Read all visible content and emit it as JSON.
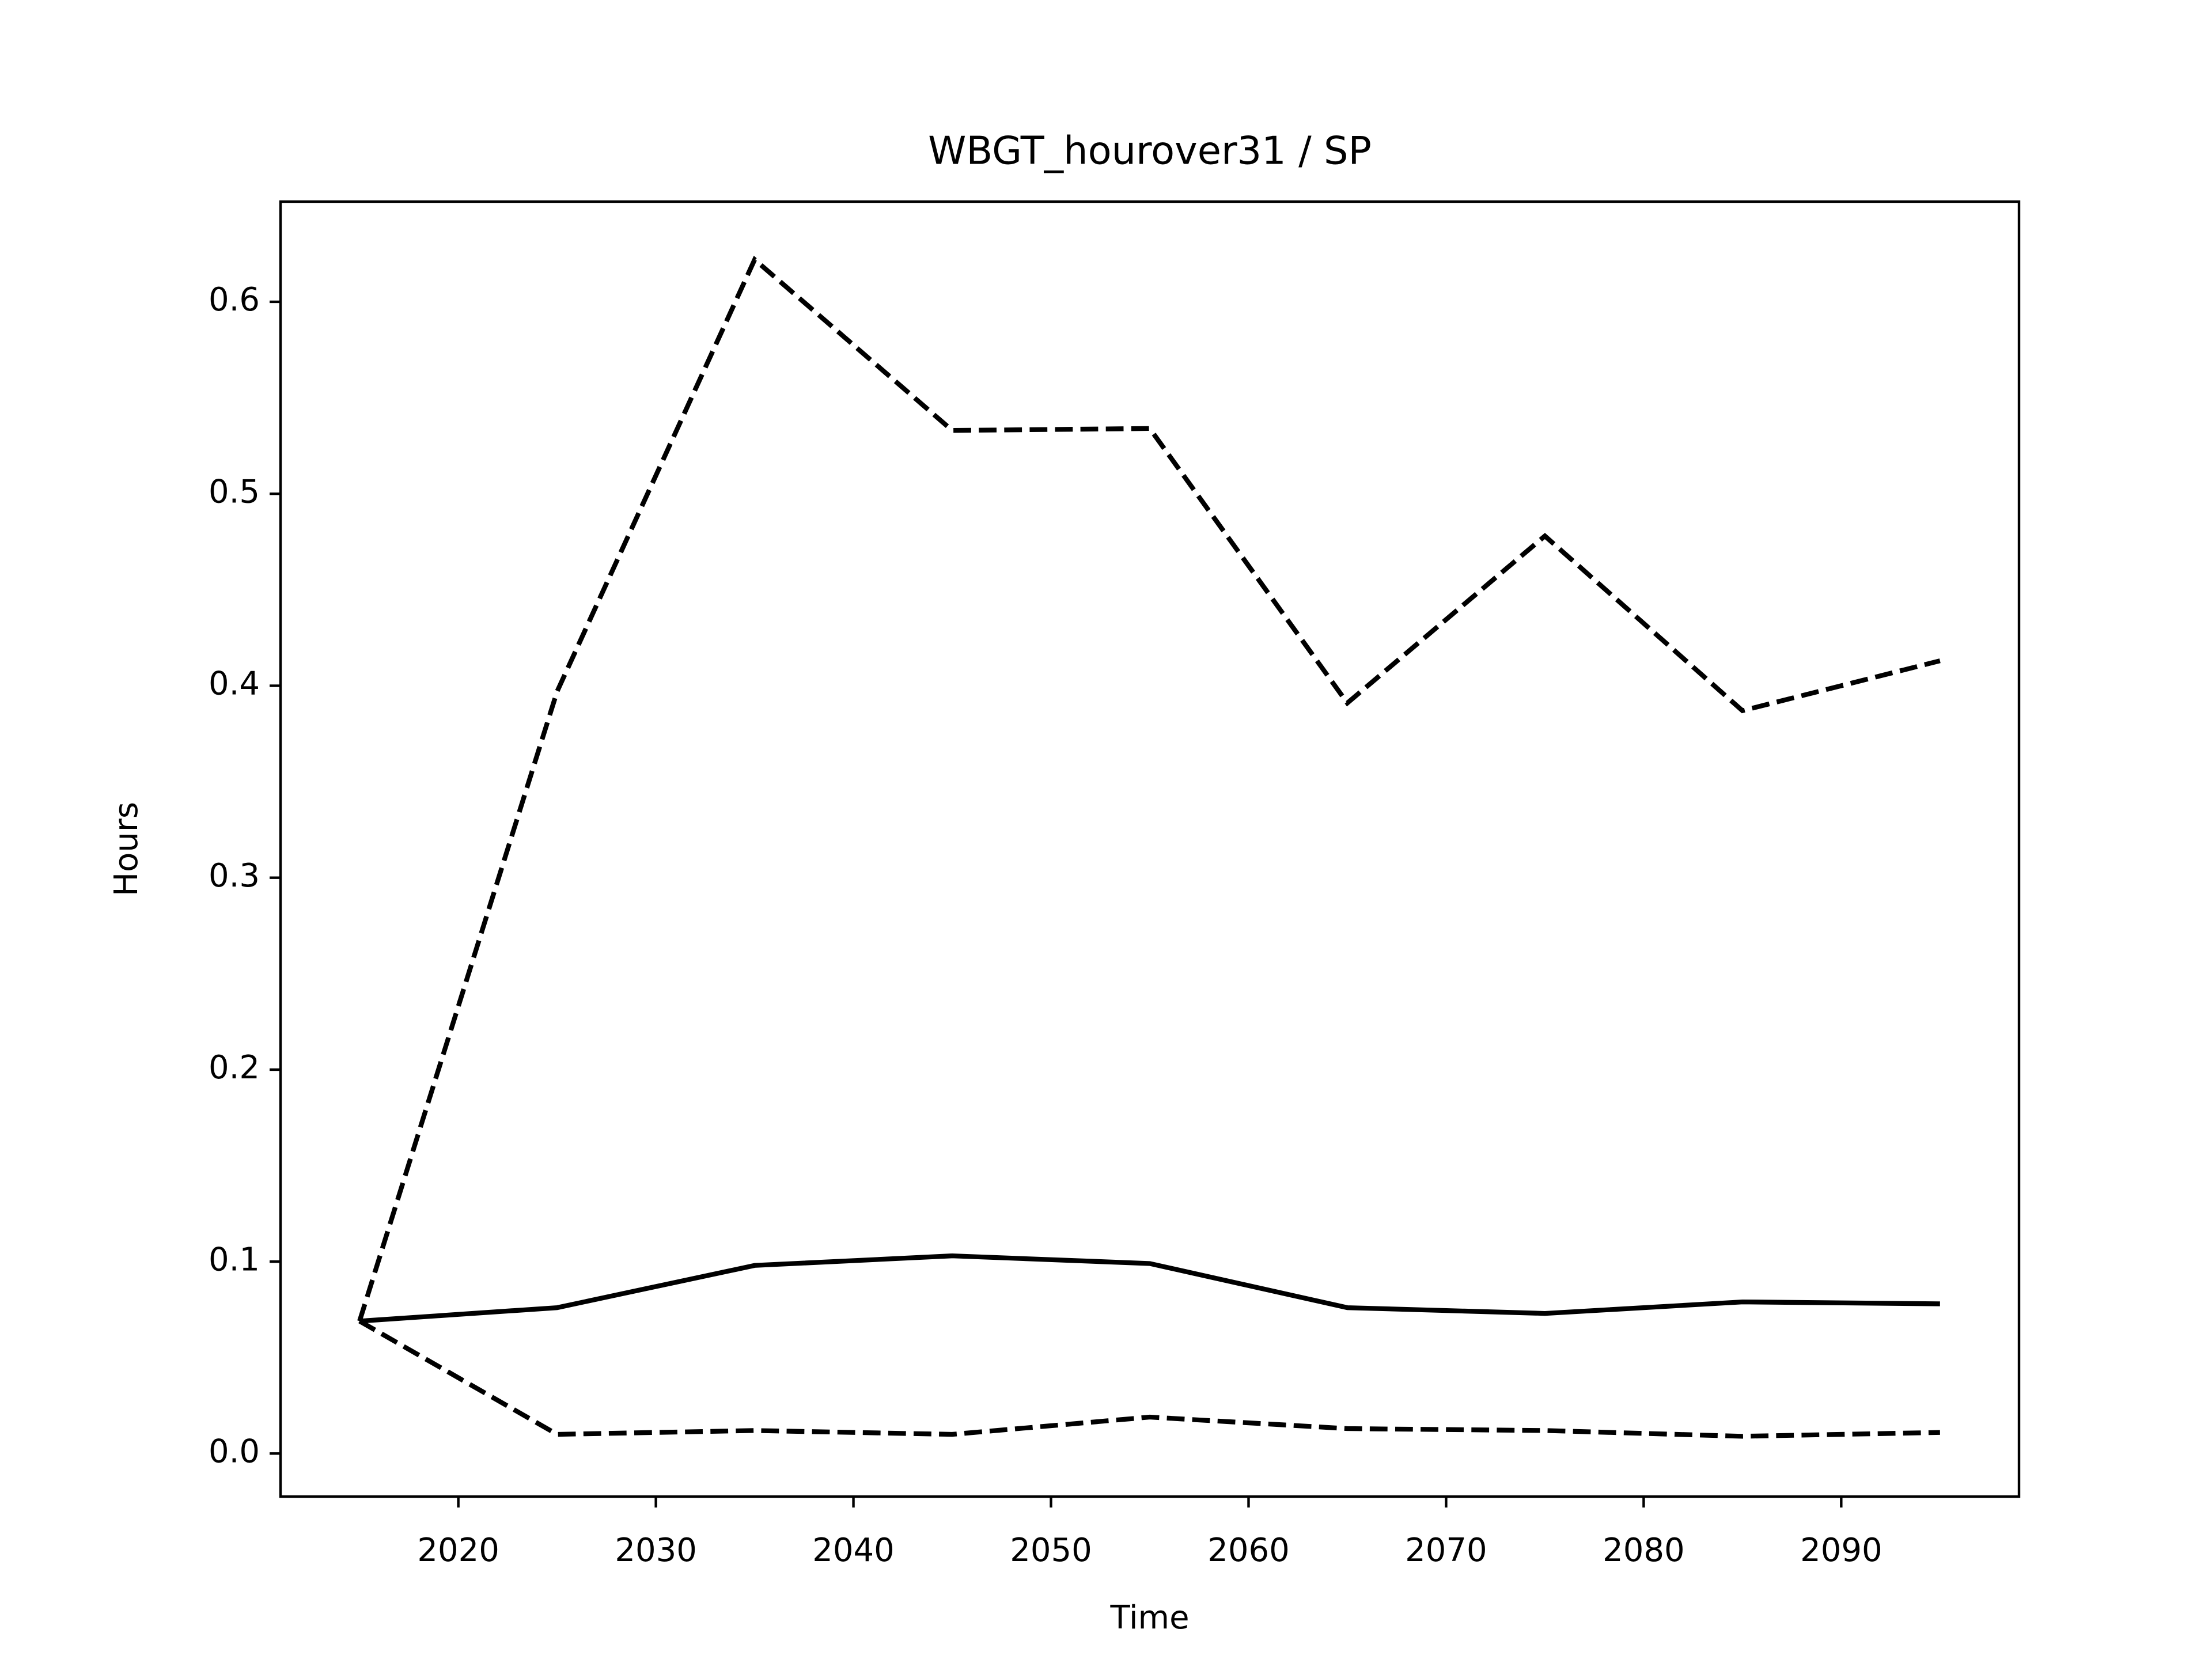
{
  "chart_data": {
    "type": "line",
    "title": "WBGT_hourover31 / SP",
    "x_label": "Time",
    "y_label": "Hours",
    "x": [
      2015,
      2025,
      2035,
      2045,
      2055,
      2065,
      2075,
      2085,
      2095
    ],
    "series": [
      {
        "color": "#000000",
        "linestyle": "solid",
        "values": [
          0.069,
          0.076,
          0.098,
          0.103,
          0.099,
          0.076,
          0.073,
          0.079,
          0.078
        ]
      },
      {
        "color": "#000000",
        "linestyle": "dashed",
        "values": [
          0.069,
          0.397,
          0.622,
          0.533,
          0.534,
          0.391,
          0.478,
          0.387,
          0.413
        ]
      },
      {
        "color": "#000000",
        "linestyle": "dashed",
        "values": [
          0.069,
          0.01,
          0.012,
          0.01,
          0.019,
          0.013,
          0.012,
          0.009,
          0.011
        ]
      }
    ],
    "xlim": [
      2011,
      2099
    ],
    "ylim": [
      -0.0224,
      0.6522
    ],
    "xticks": [
      2020,
      2030,
      2040,
      2050,
      2060,
      2070,
      2080,
      2090
    ],
    "yticks": [
      {
        "value": 0,
        "label": "0.0"
      },
      0.1,
      0.2,
      0.3,
      0.4,
      0.5,
      0.6
    ],
    "grid": false
  }
}
